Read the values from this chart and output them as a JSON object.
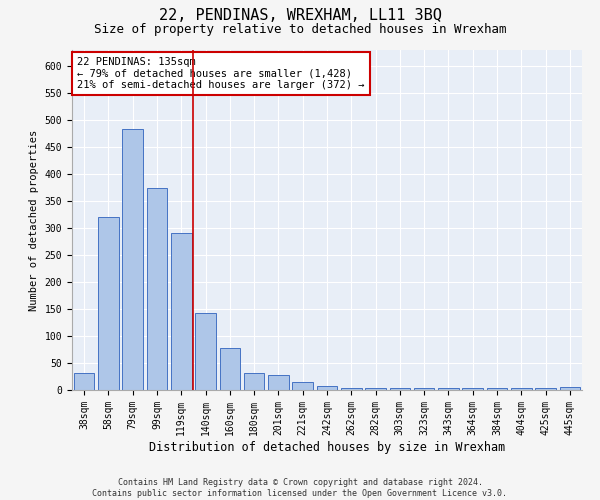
{
  "title": "22, PENDINAS, WREXHAM, LL11 3BQ",
  "subtitle": "Size of property relative to detached houses in Wrexham",
  "xlabel": "Distribution of detached houses by size in Wrexham",
  "ylabel": "Number of detached properties",
  "categories": [
    "38sqm",
    "58sqm",
    "79sqm",
    "99sqm",
    "119sqm",
    "140sqm",
    "160sqm",
    "180sqm",
    "201sqm",
    "221sqm",
    "242sqm",
    "262sqm",
    "282sqm",
    "303sqm",
    "323sqm",
    "343sqm",
    "364sqm",
    "384sqm",
    "404sqm",
    "425sqm",
    "445sqm"
  ],
  "values": [
    32,
    321,
    483,
    374,
    291,
    143,
    77,
    31,
    28,
    15,
    8,
    4,
    4,
    4,
    4,
    4,
    4,
    4,
    4,
    4,
    5
  ],
  "bar_color": "#aec6e8",
  "bar_edge_color": "#4472c4",
  "vline_color": "#cc0000",
  "vline_x_index": 4.5,
  "annotation_text": "22 PENDINAS: 135sqm\n← 79% of detached houses are smaller (1,428)\n21% of semi-detached houses are larger (372) →",
  "annotation_box_color": "#ffffff",
  "annotation_box_edge": "#cc0000",
  "ylim": [
    0,
    630
  ],
  "yticks": [
    0,
    50,
    100,
    150,
    200,
    250,
    300,
    350,
    400,
    450,
    500,
    550,
    600
  ],
  "background_color": "#e8eef7",
  "grid_color": "#ffffff",
  "footer": "Contains HM Land Registry data © Crown copyright and database right 2024.\nContains public sector information licensed under the Open Government Licence v3.0.",
  "title_fontsize": 11,
  "subtitle_fontsize": 9,
  "xlabel_fontsize": 8.5,
  "ylabel_fontsize": 7.5,
  "tick_fontsize": 7,
  "ann_fontsize": 7.5,
  "footer_fontsize": 6
}
